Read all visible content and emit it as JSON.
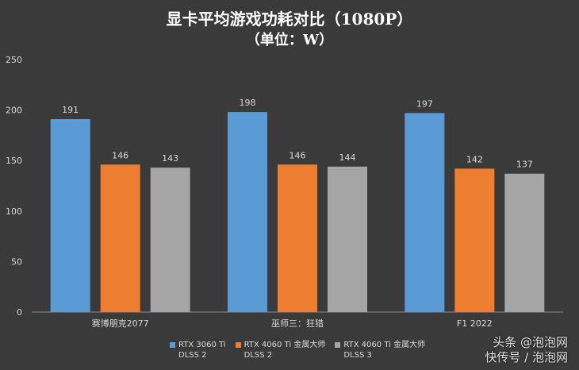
{
  "title": "显卡平均游戏功耗对比（1080P）",
  "subtitle": "（单位：W）",
  "chart_data": {
    "type": "bar",
    "categories": [
      "赛博朋克2077",
      "巫师三：狂猎",
      "F1 2022"
    ],
    "series": [
      {
        "name": "RTX 3060 Ti DLSS 2",
        "color": "#5b9bd5",
        "values": [
          191,
          198,
          197
        ]
      },
      {
        "name": "RTX 4060 Ti 金属大师 DLSS 2",
        "color": "#ed7d31",
        "values": [
          146,
          146,
          142
        ]
      },
      {
        "name": "RTX 4060 Ti 金属大师 DLSS 3",
        "color": "#a5a5a5",
        "values": [
          143,
          144,
          137
        ]
      }
    ],
    "ylim": [
      0,
      250
    ],
    "yticks": [
      0,
      50,
      100,
      150,
      200,
      250
    ],
    "grid": false,
    "legend": "bottom"
  },
  "legend_labels": [
    [
      "RTX 3060 Ti",
      "DLSS 2"
    ],
    [
      "RTX 4060 Ti 金属大师",
      "DLSS 2"
    ],
    [
      "RTX 4060 Ti 金属大师",
      "DLSS 3"
    ]
  ],
  "watermark": {
    "line1": "头条 @泡泡网",
    "line2": "快传号 / 泡泡网"
  }
}
